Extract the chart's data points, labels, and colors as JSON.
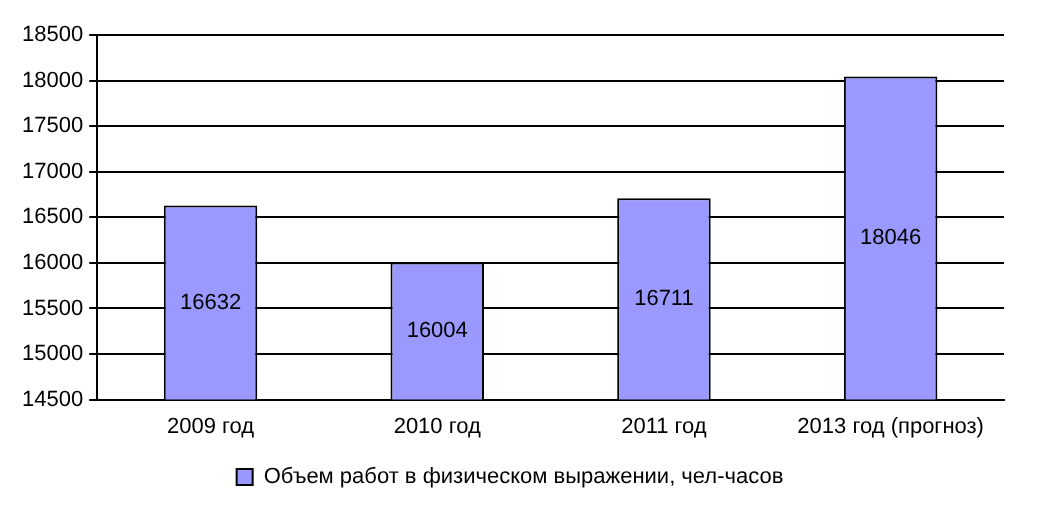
{
  "chart_data": {
    "type": "bar",
    "categories": [
      "2009 год",
      "2010 год",
      "2011 год",
      "2013 год (прогноз)"
    ],
    "series": [
      {
        "name": "Объем работ в физическом выражении, чел-часов",
        "color": "#9999ff",
        "values": [
          16632,
          16004,
          16711,
          18046
        ]
      }
    ],
    "ylim": [
      14500,
      18500
    ],
    "yticks": [
      14500,
      15000,
      15500,
      16000,
      16500,
      17000,
      17500,
      18000,
      18500
    ],
    "grid": "y",
    "legend": "bottom",
    "data_labels": true
  }
}
